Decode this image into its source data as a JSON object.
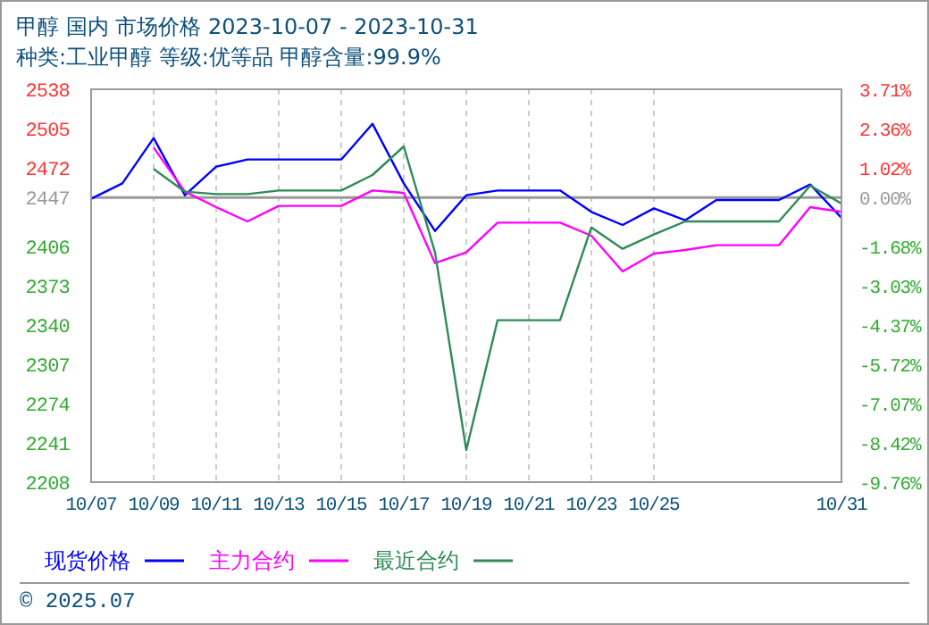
{
  "chart_data": {
    "type": "line",
    "title": "甲醇 国内 市场价格 2023-10-07 - 2023-10-31",
    "subtitle": "种类:工业甲醇 等级:优等品 甲醇含量:99.9%",
    "x": [
      "2023-10-07",
      "2023-10-08",
      "2023-10-09",
      "2023-10-10",
      "2023-10-11",
      "2023-10-12",
      "2023-10-13",
      "2023-10-14",
      "2023-10-15",
      "2023-10-16",
      "2023-10-17",
      "2023-10-18",
      "2023-10-19",
      "2023-10-20",
      "2023-10-21",
      "2023-10-22",
      "2023-10-23",
      "2023-10-24",
      "2023-10-25",
      "2023-10-26",
      "2023-10-27",
      "2023-10-28",
      "2023-10-29",
      "2023-10-30",
      "2023-10-31"
    ],
    "series": [
      {
        "name": "现货价格",
        "color": "#0000ff",
        "values": [
          2446,
          2459,
          2497,
          2449,
          2473,
          2479,
          2479,
          2479,
          2479,
          2509,
          2459,
          2419,
          2449,
          2453,
          2453,
          2453,
          2435,
          2424,
          2438,
          2428,
          2445,
          2445,
          2445,
          2458,
          2430
        ]
      },
      {
        "name": "主力合约",
        "color": "#ff00ff",
        "values": [
          null,
          null,
          2489,
          2452,
          2439,
          2427,
          2440,
          2440,
          2440,
          2453,
          2451,
          2392,
          2401,
          2426,
          2426,
          2426,
          2415,
          2385,
          2400,
          2403,
          2407,
          2407,
          2407,
          2439,
          2435
        ]
      },
      {
        "name": "最近合约",
        "color": "#2e8b57",
        "values": [
          null,
          null,
          2471,
          2452,
          2450,
          2450,
          2453,
          2453,
          2453,
          2466,
          2490,
          2401,
          2235,
          2344,
          2344,
          2344,
          2422,
          2404,
          2416,
          2427,
          2427,
          2427,
          2427,
          2457,
          2442
        ]
      }
    ],
    "xlim": [
      "2023-10-07",
      "2023-10-31"
    ],
    "xticks": [
      {
        "value": "2023-10-07",
        "label": "10/07"
      },
      {
        "value": "2023-10-09",
        "label": "10/09"
      },
      {
        "value": "2023-10-11",
        "label": "10/11"
      },
      {
        "value": "2023-10-13",
        "label": "10/13"
      },
      {
        "value": "2023-10-15",
        "label": "10/15"
      },
      {
        "value": "2023-10-17",
        "label": "10/17"
      },
      {
        "value": "2023-10-19",
        "label": "10/19"
      },
      {
        "value": "2023-10-21",
        "label": "10/21"
      },
      {
        "value": "2023-10-23",
        "label": "10/23"
      },
      {
        "value": "2023-10-25",
        "label": "10/25"
      },
      {
        "value": "2023-10-31",
        "label": "10/31"
      }
    ],
    "ylim": [
      2208,
      2538
    ],
    "yticks": [
      2208,
      2241,
      2274,
      2307,
      2340,
      2373,
      2406,
      2447,
      2472,
      2505,
      2538
    ],
    "y2lim": [
      -9.76,
      3.71
    ],
    "y2ticks": [
      {
        "value": -9.76,
        "label": "-9.76%"
      },
      {
        "value": -8.42,
        "label": "-8.42%"
      },
      {
        "value": -7.07,
        "label": "-7.07%"
      },
      {
        "value": -5.72,
        "label": "-5.72%"
      },
      {
        "value": -4.37,
        "label": "-4.37%"
      },
      {
        "value": -3.03,
        "label": "-3.03%"
      },
      {
        "value": -1.68,
        "label": "-1.68%"
      },
      {
        "value": 0,
        "label": "0.00%"
      },
      {
        "value": 1.02,
        "label": "1.02%"
      },
      {
        "value": 2.36,
        "label": "2.36%"
      },
      {
        "value": 3.71,
        "label": "3.71%"
      }
    ],
    "ref_lines": [
      {
        "axis": "y",
        "value": 2447,
        "color": "#999999"
      }
    ],
    "grid": true,
    "legend": "bottom",
    "line_style": "solid",
    "marker": "none",
    "annotations": [
      "© 2025.07"
    ]
  }
}
